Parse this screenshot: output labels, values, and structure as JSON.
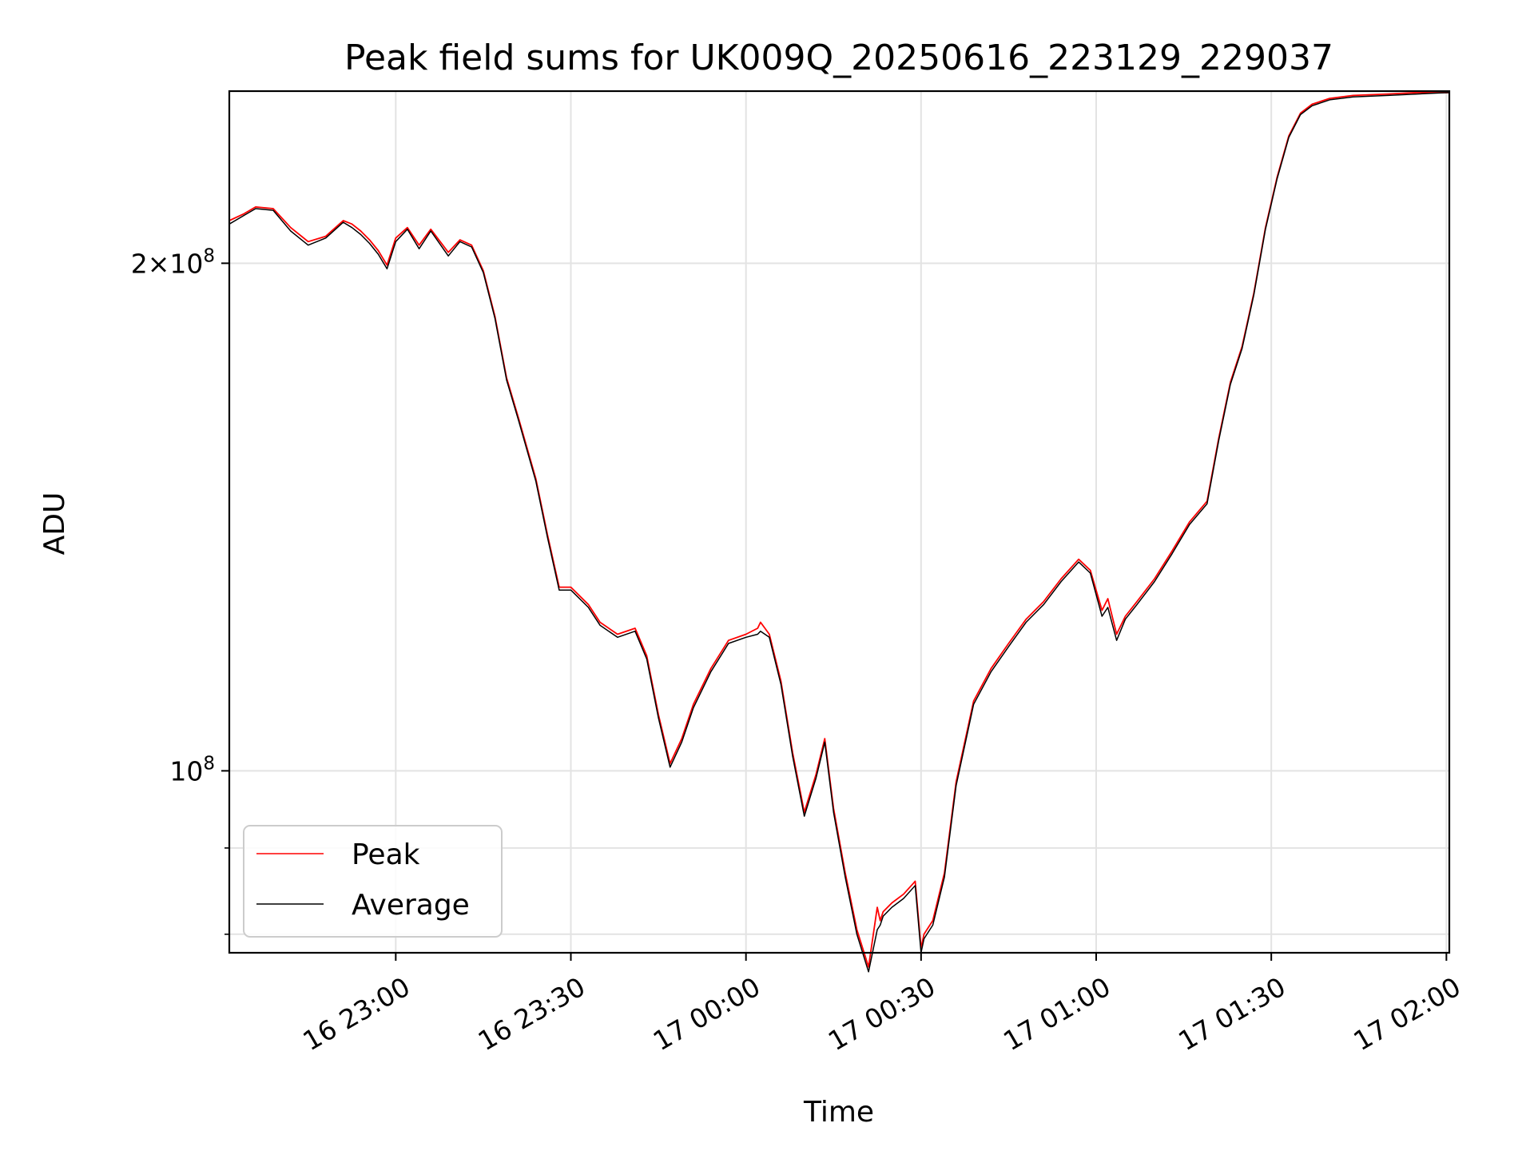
{
  "chart_data": {
    "type": "line",
    "title": "Peak field sums for UK009Q_20250616_223129_229037",
    "xlabel": "Time",
    "ylabel": "ADU",
    "yscale": "log",
    "xlim": [
      "2025-06-16 22:31:29",
      "2025-06-17 02:00:30"
    ],
    "ylim": [
      78000000,
      253000000
    ],
    "grid": true,
    "legend_position": "lower-left",
    "x_ticks": [
      {
        "value": "2025-06-16 23:00",
        "label": "16 23:00"
      },
      {
        "value": "2025-06-16 23:30",
        "label": "16 23:30"
      },
      {
        "value": "2025-06-17 00:00",
        "label": "17 00:00"
      },
      {
        "value": "2025-06-17 00:30",
        "label": "17 00:30"
      },
      {
        "value": "2025-06-17 01:00",
        "label": "17 01:00"
      },
      {
        "value": "2025-06-17 01:30",
        "label": "17 01:30"
      },
      {
        "value": "2025-06-17 02:00",
        "label": "17 02:00"
      }
    ],
    "y_ticks": [
      {
        "value": 200000000,
        "label_mantissa": "2×10",
        "label_exp": "8"
      },
      {
        "value": 100000000,
        "label_mantissa": "10",
        "label_exp": "8"
      }
    ],
    "y_minor_ticks": [
      80000000,
      90000000
    ],
    "series": [
      {
        "name": "Peak",
        "color": "#ff0000",
        "x": [
          "2025-06-16 22:31:29",
          "2025-06-16 22:34:00",
          "2025-06-16 22:36:00",
          "2025-06-16 22:39:00",
          "2025-06-16 22:42:00",
          "2025-06-16 22:45:00",
          "2025-06-16 22:48:00",
          "2025-06-16 22:51:00",
          "2025-06-16 22:52:30",
          "2025-06-16 22:54:00",
          "2025-06-16 22:55:30",
          "2025-06-16 22:57:00",
          "2025-06-16 22:58:30",
          "2025-06-16 23:00:00",
          "2025-06-16 23:02:00",
          "2025-06-16 23:04:00",
          "2025-06-16 23:06:00",
          "2025-06-16 23:09:00",
          "2025-06-16 23:11:00",
          "2025-06-16 23:13:00",
          "2025-06-16 23:15:00",
          "2025-06-16 23:17:00",
          "2025-06-16 23:19:00",
          "2025-06-16 23:21:00",
          "2025-06-16 23:24:00",
          "2025-06-16 23:26:00",
          "2025-06-16 23:28:00",
          "2025-06-16 23:30:00",
          "2025-06-16 23:33:00",
          "2025-06-16 23:35:00",
          "2025-06-16 23:38:00",
          "2025-06-16 23:41:00",
          "2025-06-16 23:43:00",
          "2025-06-16 23:45:00",
          "2025-06-16 23:47:00",
          "2025-06-16 23:49:00",
          "2025-06-16 23:51:00",
          "2025-06-16 23:54:00",
          "2025-06-16 23:57:00",
          "2025-06-17 00:00:00",
          "2025-06-17 00:02:00",
          "2025-06-17 00:02:30",
          "2025-06-17 00:04:00",
          "2025-06-17 00:06:00",
          "2025-06-17 00:08:00",
          "2025-06-17 00:10:00",
          "2025-06-17 00:12:00",
          "2025-06-17 00:13:30",
          "2025-06-17 00:15:00",
          "2025-06-17 00:17:00",
          "2025-06-17 00:19:00",
          "2025-06-17 00:21:00",
          "2025-06-17 00:22:30",
          "2025-06-17 00:23:00",
          "2025-06-17 00:23:30",
          "2025-06-17 00:25:00",
          "2025-06-17 00:27:00",
          "2025-06-17 00:29:00",
          "2025-06-17 00:30:00",
          "2025-06-17 00:30:30",
          "2025-06-17 00:32:00",
          "2025-06-17 00:34:00",
          "2025-06-17 00:36:00",
          "2025-06-17 00:39:00",
          "2025-06-17 00:42:00",
          "2025-06-17 00:45:00",
          "2025-06-17 00:48:00",
          "2025-06-17 00:51:00",
          "2025-06-17 00:54:00",
          "2025-06-17 00:57:00",
          "2025-06-17 00:59:00",
          "2025-06-17 01:01:00",
          "2025-06-17 01:02:00",
          "2025-06-17 01:03:30",
          "2025-06-17 01:05:00",
          "2025-06-17 01:07:00",
          "2025-06-17 01:10:00",
          "2025-06-17 01:13:00",
          "2025-06-17 01:16:00",
          "2025-06-17 01:19:00",
          "2025-06-17 01:21:00",
          "2025-06-17 01:23:00",
          "2025-06-17 01:25:00",
          "2025-06-17 01:27:00",
          "2025-06-17 01:29:00",
          "2025-06-17 01:31:00",
          "2025-06-17 01:33:00",
          "2025-06-17 01:35:00",
          "2025-06-17 01:37:00",
          "2025-06-17 01:40:00",
          "2025-06-17 01:44:00",
          "2025-06-17 01:50:00",
          "2025-06-17 01:55:00",
          "2025-06-17 02:00:30"
        ],
        "values": [
          212000000,
          214000000,
          216000000,
          215500000,
          210000000,
          206000000,
          207500000,
          212000000,
          211000000,
          209000000,
          206500000,
          203500000,
          199500000,
          207000000,
          210000000,
          205000000,
          209500000,
          203000000,
          206500000,
          205000000,
          198000000,
          186000000,
          171000000,
          162000000,
          149000000,
          138000000,
          128500000,
          128500000,
          125500000,
          122500000,
          120500000,
          121500000,
          117000000,
          108000000,
          101000000,
          104500000,
          109500000,
          115000000,
          119500000,
          120500000,
          121500000,
          122500000,
          120500000,
          113000000,
          102500000,
          94500000,
          99500000,
          104500000,
          95000000,
          87000000,
          80500000,
          76500000,
          83000000,
          81500000,
          82500000,
          83500000,
          84500000,
          86000000,
          78500000,
          80000000,
          81500000,
          87000000,
          98500000,
          110000000,
          115000000,
          119000000,
          123000000,
          126000000,
          130000000,
          133500000,
          131500000,
          124500000,
          126500000,
          120500000,
          123500000,
          126000000,
          130000000,
          135000000,
          140500000,
          144500000,
          157500000,
          170000000,
          178500000,
          192000000,
          210000000,
          225000000,
          238000000,
          245500000,
          248500000,
          250500000,
          251500000,
          252000000,
          252500000,
          252500000
        ]
      },
      {
        "name": "Average",
        "color": "#000000",
        "x": [
          "2025-06-16 22:31:29",
          "2025-06-16 22:34:00",
          "2025-06-16 22:36:00",
          "2025-06-16 22:39:00",
          "2025-06-16 22:42:00",
          "2025-06-16 22:45:00",
          "2025-06-16 22:48:00",
          "2025-06-16 22:51:00",
          "2025-06-16 22:52:30",
          "2025-06-16 22:54:00",
          "2025-06-16 22:55:30",
          "2025-06-16 22:57:00",
          "2025-06-16 22:58:30",
          "2025-06-16 23:00:00",
          "2025-06-16 23:02:00",
          "2025-06-16 23:04:00",
          "2025-06-16 23:06:00",
          "2025-06-16 23:09:00",
          "2025-06-16 23:11:00",
          "2025-06-16 23:13:00",
          "2025-06-16 23:15:00",
          "2025-06-16 23:17:00",
          "2025-06-16 23:19:00",
          "2025-06-16 23:21:00",
          "2025-06-16 23:24:00",
          "2025-06-16 23:26:00",
          "2025-06-16 23:28:00",
          "2025-06-16 23:30:00",
          "2025-06-16 23:33:00",
          "2025-06-16 23:35:00",
          "2025-06-16 23:38:00",
          "2025-06-16 23:41:00",
          "2025-06-16 23:43:00",
          "2025-06-16 23:45:00",
          "2025-06-16 23:47:00",
          "2025-06-16 23:49:00",
          "2025-06-16 23:51:00",
          "2025-06-16 23:54:00",
          "2025-06-16 23:57:00",
          "2025-06-17 00:00:00",
          "2025-06-17 00:02:00",
          "2025-06-17 00:02:30",
          "2025-06-17 00:04:00",
          "2025-06-17 00:06:00",
          "2025-06-17 00:08:00",
          "2025-06-17 00:10:00",
          "2025-06-17 00:12:00",
          "2025-06-17 00:13:30",
          "2025-06-17 00:15:00",
          "2025-06-17 00:17:00",
          "2025-06-17 00:19:00",
          "2025-06-17 00:21:00",
          "2025-06-17 00:22:30",
          "2025-06-17 00:23:00",
          "2025-06-17 00:23:30",
          "2025-06-17 00:25:00",
          "2025-06-17 00:27:00",
          "2025-06-17 00:29:00",
          "2025-06-17 00:30:00",
          "2025-06-17 00:30:30",
          "2025-06-17 00:32:00",
          "2025-06-17 00:34:00",
          "2025-06-17 00:36:00",
          "2025-06-17 00:39:00",
          "2025-06-17 00:42:00",
          "2025-06-17 00:45:00",
          "2025-06-17 00:48:00",
          "2025-06-17 00:51:00",
          "2025-06-17 00:54:00",
          "2025-06-17 00:57:00",
          "2025-06-17 00:59:00",
          "2025-06-17 01:01:00",
          "2025-06-17 01:02:00",
          "2025-06-17 01:03:30",
          "2025-06-17 01:05:00",
          "2025-06-17 01:07:00",
          "2025-06-17 01:10:00",
          "2025-06-17 01:13:00",
          "2025-06-17 01:16:00",
          "2025-06-17 01:19:00",
          "2025-06-17 01:21:00",
          "2025-06-17 01:23:00",
          "2025-06-17 01:25:00",
          "2025-06-17 01:27:00",
          "2025-06-17 01:29:00",
          "2025-06-17 01:31:00",
          "2025-06-17 01:33:00",
          "2025-06-17 01:35:00",
          "2025-06-17 01:37:00",
          "2025-06-17 01:40:00",
          "2025-06-17 01:44:00",
          "2025-06-17 01:50:00",
          "2025-06-17 01:55:00",
          "2025-06-17 02:00:30"
        ],
        "values": [
          211000000,
          213500000,
          215500000,
          215000000,
          209000000,
          205000000,
          207000000,
          211500000,
          210000000,
          208000000,
          205500000,
          202500000,
          198500000,
          206000000,
          209500000,
          204000000,
          209000000,
          202000000,
          206000000,
          204500000,
          197500000,
          185500000,
          170500000,
          161500000,
          148500000,
          137500000,
          128000000,
          128000000,
          125000000,
          122000000,
          120000000,
          121000000,
          116500000,
          107500000,
          100500000,
          104000000,
          109000000,
          114500000,
          119000000,
          120000000,
          120500000,
          121000000,
          120000000,
          112500000,
          102000000,
          94000000,
          99000000,
          104000000,
          94500000,
          86500000,
          80000000,
          76000000,
          80500000,
          81000000,
          82000000,
          83000000,
          84000000,
          85500000,
          78000000,
          79500000,
          81000000,
          86500000,
          98000000,
          109500000,
          114500000,
          118500000,
          122500000,
          125500000,
          129500000,
          133000000,
          131000000,
          123500000,
          125000000,
          119500000,
          123000000,
          125500000,
          129500000,
          134500000,
          140000000,
          144000000,
          157000000,
          169500000,
          178000000,
          191500000,
          209500000,
          224500000,
          237500000,
          245000000,
          248000000,
          250000000,
          251000000,
          251500000,
          252000000,
          252500000
        ]
      }
    ]
  }
}
